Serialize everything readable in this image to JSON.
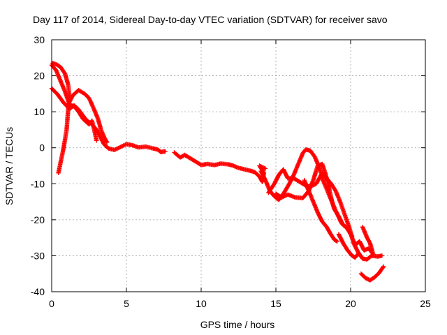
{
  "chart_data": {
    "type": "scatter",
    "title": "Day 117 of 2014, Sidereal Day-to-day VTEC variation (SDTVAR) for receiver savo",
    "xlabel": "GPS time / hours",
    "ylabel": "SDTVAR / TECUs",
    "xlim": [
      0,
      25
    ],
    "ylim": [
      -40,
      30
    ],
    "xticks": [
      0,
      5,
      10,
      15,
      20,
      25
    ],
    "yticks": [
      -40,
      -30,
      -20,
      -10,
      0,
      10,
      20,
      30
    ],
    "grid": true,
    "marker": "+",
    "series": [
      {
        "name": "trace-a",
        "color": "#ff0000",
        "points": [
          [
            0.05,
            23.5
          ],
          [
            0.3,
            23.2
          ],
          [
            0.6,
            22.4
          ],
          [
            0.9,
            20.5
          ],
          [
            1.1,
            17.5
          ],
          [
            1.2,
            14.0
          ],
          [
            1.1,
            10.5
          ],
          [
            1.0,
            5.0
          ],
          [
            0.8,
            0.0
          ],
          [
            0.6,
            -4.0
          ],
          [
            0.45,
            -7.0
          ]
        ]
      },
      {
        "name": "trace-b",
        "color": "#ff0000",
        "points": [
          [
            0.0,
            23.0
          ],
          [
            0.3,
            21.5
          ],
          [
            0.6,
            18.5
          ],
          [
            0.9,
            15.5
          ],
          [
            1.2,
            12.0
          ],
          [
            1.5,
            11.5
          ],
          [
            1.8,
            10.0
          ],
          [
            2.1,
            8.0
          ],
          [
            2.5,
            6.5
          ],
          [
            2.7,
            7.5
          ],
          [
            2.9,
            4.0
          ],
          [
            3.0,
            2.0
          ]
        ]
      },
      {
        "name": "trace-c",
        "color": "#ff0000",
        "points": [
          [
            0.0,
            16.5
          ],
          [
            0.4,
            14.8
          ],
          [
            0.8,
            12.5
          ],
          [
            1.2,
            10.8
          ],
          [
            1.5,
            11.8
          ],
          [
            1.8,
            10.6
          ],
          [
            2.3,
            7.8
          ],
          [
            2.7,
            6.5
          ],
          [
            3.0,
            5.0
          ],
          [
            3.2,
            3.5
          ],
          [
            3.5,
            1.0
          ],
          [
            3.8,
            -0.2
          ],
          [
            4.2,
            -0.6
          ],
          [
            4.6,
            0.2
          ],
          [
            5.0,
            1.0
          ],
          [
            5.4,
            0.7
          ],
          [
            5.8,
            0.1
          ],
          [
            6.3,
            0.3
          ],
          [
            6.8,
            -0.2
          ],
          [
            7.1,
            -0.5
          ],
          [
            7.3,
            -1.2
          ],
          [
            7.6,
            -1.0
          ]
        ]
      },
      {
        "name": "trace-d",
        "color": "#ff0000",
        "points": [
          [
            1.1,
            12.0
          ],
          [
            1.4,
            14.5
          ],
          [
            1.8,
            16.0
          ],
          [
            2.2,
            15.0
          ],
          [
            2.5,
            13.8
          ],
          [
            2.8,
            11.0
          ],
          [
            3.1,
            8.0
          ],
          [
            3.3,
            5.0
          ],
          [
            3.5,
            3.0
          ],
          [
            3.7,
            1.5
          ]
        ]
      },
      {
        "name": "trace-e",
        "color": "#ff0000",
        "points": [
          [
            8.2,
            -1.3
          ],
          [
            8.6,
            -2.7
          ],
          [
            8.9,
            -2.0
          ],
          [
            9.3,
            -3.0
          ],
          [
            9.7,
            -4.0
          ],
          [
            10.0,
            -4.8
          ],
          [
            10.4,
            -4.5
          ],
          [
            10.9,
            -4.8
          ],
          [
            11.3,
            -4.4
          ],
          [
            11.8,
            -4.6
          ],
          [
            12.1,
            -4.9
          ],
          [
            12.5,
            -5.6
          ],
          [
            12.9,
            -6.0
          ],
          [
            13.3,
            -6.4
          ],
          [
            13.6,
            -6.8
          ],
          [
            13.9,
            -8.0
          ],
          [
            14.1,
            -9.5
          ],
          [
            14.2,
            -7.0
          ],
          [
            13.9,
            -5.0
          ],
          [
            14.3,
            -5.8
          ]
        ]
      },
      {
        "name": "trace-f",
        "color": "#ff0000",
        "points": [
          [
            14.0,
            -6.5
          ],
          [
            14.3,
            -9.0
          ],
          [
            14.6,
            -12.0
          ],
          [
            14.9,
            -13.5
          ],
          [
            15.2,
            -14.5
          ],
          [
            15.5,
            -12.8
          ],
          [
            15.9,
            -10.0
          ],
          [
            16.2,
            -7.5
          ],
          [
            16.5,
            -4.5
          ],
          [
            16.8,
            -1.5
          ],
          [
            17.0,
            -0.5
          ],
          [
            17.3,
            -0.8
          ],
          [
            17.6,
            -2.5
          ],
          [
            17.9,
            -5.5
          ],
          [
            18.2,
            -9.5
          ],
          [
            18.6,
            -13.5
          ],
          [
            19.0,
            -17.5
          ],
          [
            19.4,
            -21.0
          ],
          [
            19.8,
            -22.5
          ],
          [
            20.1,
            -24.5
          ]
        ]
      },
      {
        "name": "trace-g",
        "color": "#ff0000",
        "points": [
          [
            14.5,
            -12.5
          ],
          [
            14.9,
            -10.0
          ],
          [
            15.2,
            -7.5
          ],
          [
            15.5,
            -6.0
          ],
          [
            15.8,
            -8.5
          ],
          [
            16.2,
            -8.5
          ],
          [
            16.6,
            -9.5
          ],
          [
            17.0,
            -10.5
          ],
          [
            17.3,
            -10.8
          ],
          [
            17.7,
            -10.0
          ],
          [
            17.9,
            -8.5
          ],
          [
            18.1,
            -7.0
          ],
          [
            18.4,
            -8.5
          ],
          [
            18.7,
            -10.0
          ],
          [
            19.0,
            -12.0
          ],
          [
            19.3,
            -15.0
          ],
          [
            19.6,
            -18.5
          ],
          [
            19.9,
            -22.0
          ],
          [
            20.2,
            -26.5
          ],
          [
            20.5,
            -29.0
          ],
          [
            20.8,
            -30.8
          ],
          [
            21.1,
            -31.0
          ],
          [
            21.4,
            -30.0
          ],
          [
            21.8,
            -30.2
          ],
          [
            22.1,
            -30.0
          ]
        ]
      },
      {
        "name": "trace-h",
        "color": "#ff0000",
        "points": [
          [
            15.0,
            -12.8
          ],
          [
            15.4,
            -13.8
          ],
          [
            15.8,
            -13.0
          ],
          [
            16.3,
            -13.8
          ],
          [
            16.8,
            -14.0
          ],
          [
            17.2,
            -12.0
          ],
          [
            17.5,
            -9.0
          ],
          [
            17.8,
            -5.0
          ],
          [
            18.1,
            -4.5
          ],
          [
            18.3,
            -7.0
          ],
          [
            18.5,
            -10.0
          ],
          [
            18.7,
            -14.0
          ],
          [
            18.9,
            -17.0
          ],
          [
            19.2,
            -19.0
          ],
          [
            19.5,
            -21.5
          ],
          [
            19.7,
            -22.0
          ],
          [
            20.0,
            -24.0
          ],
          [
            20.3,
            -27.0
          ],
          [
            20.6,
            -26.0
          ],
          [
            20.9,
            -28.5
          ],
          [
            21.2,
            -28.0
          ],
          [
            21.5,
            -29.5
          ],
          [
            21.3,
            -26.5
          ],
          [
            21.1,
            -25.0
          ],
          [
            20.8,
            -22.0
          ]
        ]
      },
      {
        "name": "trace-i",
        "color": "#ff0000",
        "points": [
          [
            16.9,
            -9.0
          ],
          [
            17.2,
            -12.0
          ],
          [
            17.5,
            -15.0
          ],
          [
            17.8,
            -18.0
          ],
          [
            18.1,
            -20.5
          ],
          [
            18.4,
            -22.0
          ],
          [
            18.6,
            -23.5
          ],
          [
            18.9,
            -25.5
          ],
          [
            19.1,
            -26.0
          ]
        ]
      },
      {
        "name": "trace-j",
        "color": "#ff0000",
        "points": [
          [
            19.2,
            -24.0
          ],
          [
            19.5,
            -26.5
          ],
          [
            19.8,
            -28.5
          ],
          [
            20.1,
            -30.0
          ],
          [
            20.3,
            -30.5
          ],
          [
            20.5,
            -29.5
          ]
        ]
      },
      {
        "name": "trace-k",
        "color": "#ff0000",
        "points": [
          [
            20.7,
            -35.0
          ],
          [
            21.0,
            -36.2
          ],
          [
            21.3,
            -36.8
          ],
          [
            21.6,
            -36.0
          ],
          [
            21.9,
            -34.8
          ],
          [
            22.2,
            -33.0
          ]
        ]
      }
    ]
  }
}
